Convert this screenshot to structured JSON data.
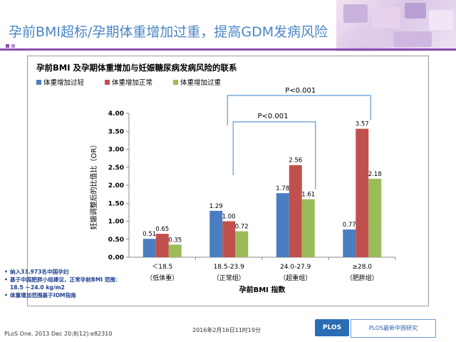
{
  "slide": {
    "title": "孕前BMI超标/孕期体重增加过重，提高GDM发病风险",
    "notes": [
      "纳入33,973名中国孕妇",
      "基于中国肥胖小组建议，正常孕前BMI 范围：18.5 －24.0 kg/m2",
      "体重增加范围基于IOM指南"
    ],
    "citation": "PLoS One. 2013 Dec 20;8(12):e82310",
    "date": "2016年2月16日11时19分",
    "logo_text": "PLOS",
    "brand_text": "PLOS最新中国研究"
  },
  "chart_data": {
    "type": "bar",
    "title": "孕前BMI 及孕期体重增加与妊娠糖尿病发病风险的联系",
    "xlabel": "孕前BMI 指数",
    "ylabel": "妊娠调整后的比值比（OR）",
    "categories": [
      {
        "range": "＜18.5",
        "label": "（低体重）"
      },
      {
        "range": "18.5-23.9",
        "label": "（正常组）"
      },
      {
        "range": "24.0-27.9",
        "label": "（超重组）"
      },
      {
        "range": "≥28.0",
        "label": "（肥胖组）"
      }
    ],
    "series": [
      {
        "name": "体重增加过轻",
        "color": "#4a7ec0",
        "values": [
          0.51,
          1.29,
          1.78,
          0.77
        ],
        "labels": [
          "0.51",
          "1.29",
          "1.78",
          "0.77"
        ]
      },
      {
        "name": "体重增加正常",
        "color": "#c0504d",
        "values": [
          0.65,
          1.0,
          2.56,
          3.57
        ],
        "labels": [
          "0.65",
          "1.00",
          "2.56",
          "3.57"
        ]
      },
      {
        "name": "体重增加过重",
        "color": "#9bbb59",
        "values": [
          0.35,
          0.72,
          1.61,
          2.18
        ],
        "labels": [
          "0.35",
          "0.72",
          "1.61",
          "2.18"
        ]
      }
    ],
    "ylim": [
      0,
      4
    ],
    "yticks": [
      "0.00",
      "0.50",
      "1.00",
      "1.50",
      "2.00",
      "2.50",
      "3.00",
      "3.50",
      "4.00"
    ],
    "legend_position": "top-left",
    "grid": false,
    "annotations": [
      {
        "text": "P<0.001",
        "from_category": 1,
        "to_category": 3
      },
      {
        "text": "P<0.001",
        "from_category": 1,
        "to_category": 2
      }
    ]
  }
}
